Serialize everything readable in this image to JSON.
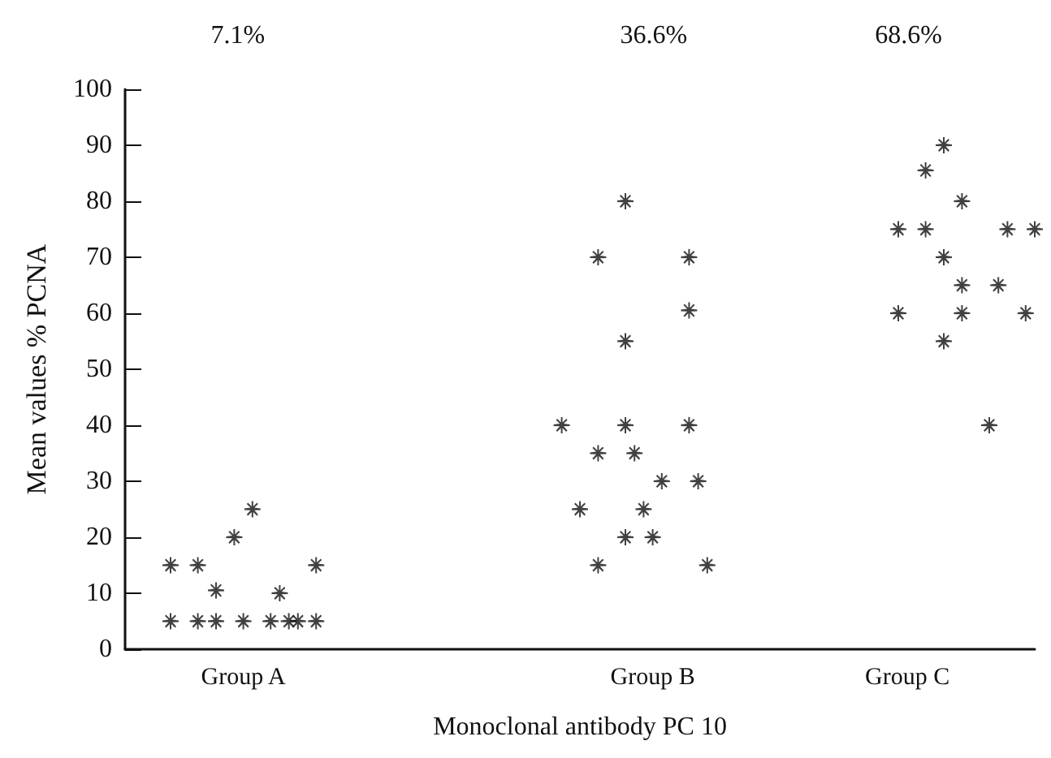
{
  "chart_data": {
    "type": "scatter",
    "xlabel": "Monoclonal antibody PC 10",
    "ylabel": "Mean values % PCNA",
    "annotations": [
      "7.1%",
      "36.6%",
      "68.6%"
    ],
    "categories": [
      null,
      null,
      null,
      null,
      null,
      null,
      null,
      null,
      null,
      null,
      null,
      null,
      null,
      "Group A",
      null,
      null,
      null,
      null,
      null,
      null,
      null,
      null,
      null,
      null,
      null,
      null,
      null,
      null,
      null,
      null,
      null,
      null,
      null,
      null,
      null,
      null,
      null,
      null,
      null,
      null,
      null,
      null,
      null,
      null,
      null,
      null,
      null,
      null,
      null,
      null,
      null,
      null,
      null,
      null,
      null,
      null,
      null,
      null,
      "Group B",
      null,
      null,
      null,
      null,
      null,
      null,
      null,
      null,
      null,
      null,
      null,
      null,
      null,
      null,
      null,
      null,
      null,
      null,
      null,
      null,
      null,
      null,
      null,
      null,
      null,
      null,
      null,
      "Group C",
      null,
      null,
      null,
      null,
      null,
      null,
      null,
      null,
      null,
      null,
      null,
      null,
      null,
      null
    ],
    "ylim": [
      0,
      100
    ],
    "yticks": [
      0,
      10,
      20,
      30,
      40,
      50,
      60,
      70,
      80,
      90,
      100
    ],
    "grid": false,
    "marker": "star",
    "series": [
      {
        "color": "#111111",
        "values": [
          null,
          null,
          null,
          null,
          null,
          15,
          null,
          null,
          15,
          null,
          10.5,
          null,
          20,
          5,
          25,
          null,
          5,
          10,
          5,
          5,
          null,
          15,
          null,
          null,
          null,
          null,
          null,
          null,
          null,
          null,
          null,
          null,
          null,
          null,
          null,
          null,
          null,
          null,
          null,
          null,
          null,
          null,
          null,
          null,
          null,
          null,
          null,
          null,
          40,
          null,
          25,
          null,
          70,
          null,
          null,
          80,
          35,
          25,
          20,
          30,
          null,
          null,
          70,
          30,
          15,
          null,
          null,
          null,
          null,
          null,
          null,
          null,
          null,
          null,
          null,
          null,
          null,
          null,
          null,
          null,
          null,
          null,
          null,
          null,
          null,
          75,
          null,
          null,
          85.5,
          null,
          90,
          null,
          80,
          null,
          null,
          40,
          65,
          75,
          null,
          60,
          75
        ]
      },
      {
        "color": "#111111",
        "values": [
          null,
          null,
          null,
          null,
          null,
          5,
          null,
          null,
          5,
          null,
          5,
          null,
          null,
          null,
          null,
          null,
          null,
          null,
          null,
          null,
          null,
          5,
          null,
          null,
          null,
          null,
          null,
          null,
          null,
          null,
          null,
          null,
          null,
          null,
          null,
          null,
          null,
          null,
          null,
          null,
          null,
          null,
          null,
          null,
          null,
          null,
          null,
          null,
          null,
          null,
          null,
          null,
          35,
          null,
          null,
          55,
          null,
          null,
          null,
          null,
          null,
          null,
          60.5,
          null,
          null,
          null,
          null,
          null,
          null,
          null,
          null,
          null,
          null,
          null,
          null,
          null,
          null,
          null,
          null,
          null,
          null,
          null,
          null,
          null,
          null,
          60,
          null,
          null,
          75,
          null,
          70,
          null,
          65,
          null,
          null,
          null,
          null,
          null,
          null,
          null,
          null
        ]
      },
      {
        "color": "#111111",
        "values": [
          null,
          null,
          null,
          null,
          null,
          null,
          null,
          null,
          null,
          null,
          null,
          null,
          null,
          null,
          null,
          null,
          null,
          null,
          null,
          null,
          null,
          null,
          null,
          null,
          null,
          null,
          null,
          null,
          null,
          null,
          null,
          null,
          null,
          null,
          null,
          null,
          null,
          null,
          null,
          null,
          null,
          null,
          null,
          null,
          null,
          null,
          null,
          null,
          null,
          null,
          null,
          null,
          15,
          null,
          null,
          40,
          null,
          null,
          null,
          null,
          null,
          null,
          40,
          null,
          null,
          null,
          null,
          null,
          null,
          null,
          null,
          null,
          null,
          null,
          null,
          null,
          null,
          null,
          null,
          null,
          null,
          null,
          null,
          null,
          null,
          null,
          null,
          null,
          null,
          null,
          55,
          null,
          60,
          null,
          null,
          null,
          null,
          null,
          null,
          null,
          null
        ]
      },
      {
        "color": "#111111",
        "values": [
          null,
          null,
          null,
          null,
          null,
          null,
          null,
          null,
          null,
          null,
          null,
          null,
          null,
          null,
          null,
          null,
          null,
          null,
          null,
          null,
          null,
          null,
          null,
          null,
          null,
          null,
          null,
          null,
          null,
          null,
          null,
          null,
          null,
          null,
          null,
          null,
          null,
          null,
          null,
          null,
          null,
          null,
          null,
          null,
          null,
          null,
          null,
          null,
          null,
          null,
          null,
          null,
          null,
          null,
          null,
          20,
          null,
          null,
          null,
          null,
          null,
          null,
          null,
          null,
          null,
          null,
          null,
          null,
          null,
          null,
          null,
          null,
          null,
          null,
          null,
          null,
          null,
          null,
          null,
          null,
          null,
          null,
          null,
          null,
          null,
          null,
          null,
          null,
          null,
          null,
          null,
          null,
          null,
          null,
          null,
          null,
          null,
          null,
          null,
          null,
          null
        ]
      }
    ]
  }
}
